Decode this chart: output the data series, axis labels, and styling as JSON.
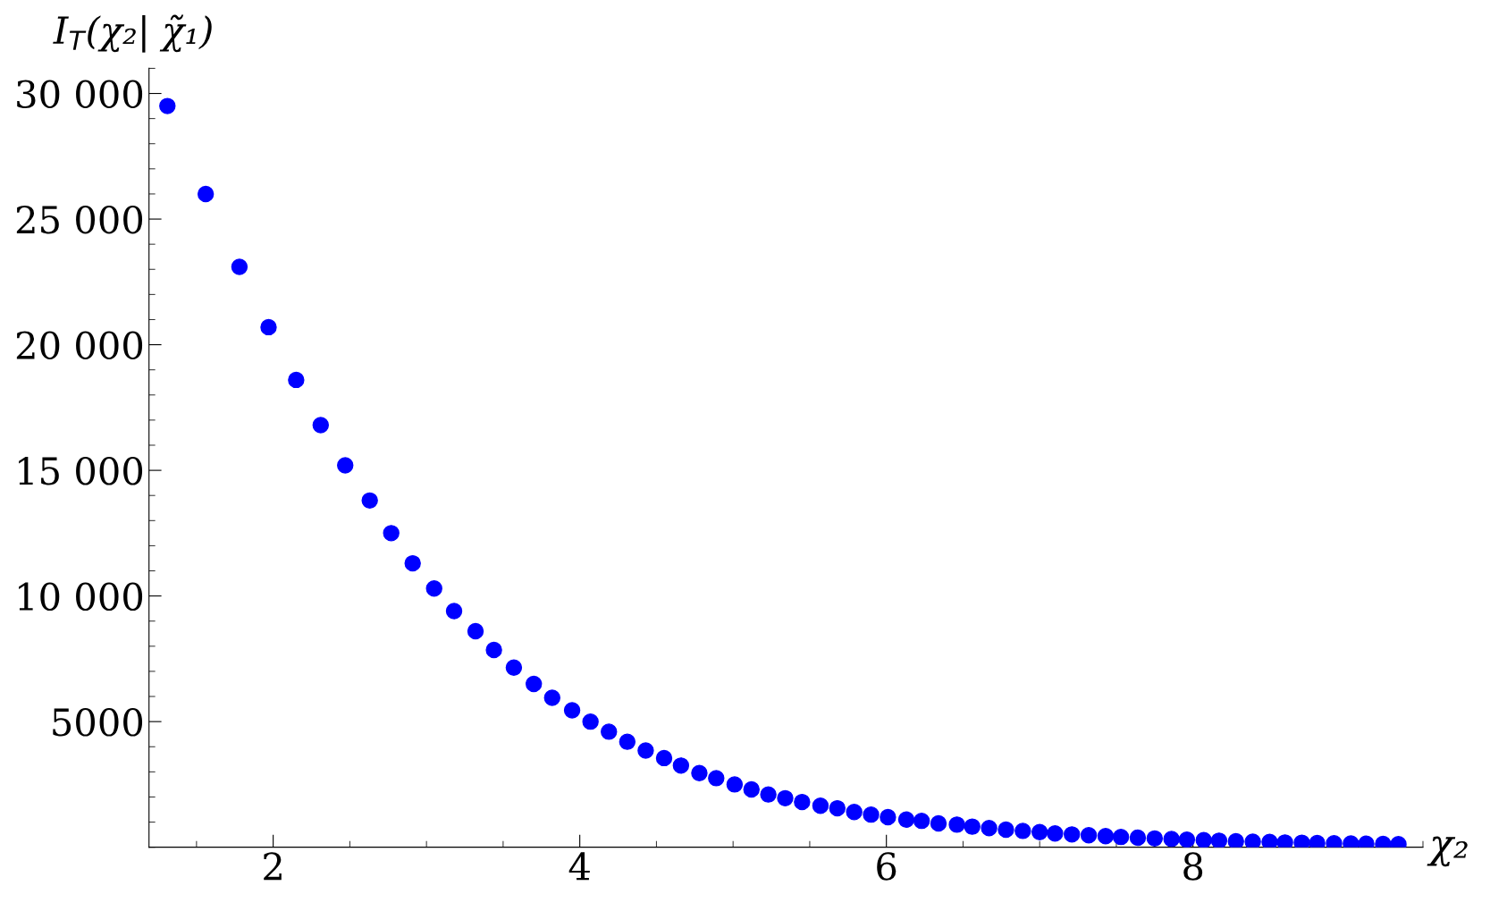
{
  "chart_data": {
    "type": "scatter",
    "xlabel": "χ₂",
    "ylabel": "I$_{T}$(χ₂| χ̃₁)",
    "xlim": [
      1.19,
      9.5
    ],
    "ylim": [
      0,
      31000
    ],
    "xticks": [
      2,
      4,
      6,
      8
    ],
    "yticks": [
      {
        "value": 5000,
        "label": "5000"
      },
      {
        "value": 10000,
        "label": "10 000"
      },
      {
        "value": 15000,
        "label": "15 000"
      },
      {
        "value": 20000,
        "label": "20 000"
      },
      {
        "value": 25000,
        "label": "25 000"
      },
      {
        "value": 30000,
        "label": "30 000"
      }
    ],
    "grid": false,
    "marker": "circle",
    "series": [
      {
        "color": "#0000ff",
        "x": [
          1.31,
          1.56,
          1.78,
          1.97,
          2.15,
          2.31,
          2.47,
          2.63,
          2.77,
          2.91,
          3.05,
          3.18,
          3.32,
          3.44,
          3.57,
          3.7,
          3.82,
          3.95,
          4.07,
          4.19,
          4.31,
          4.43,
          4.55,
          4.66,
          4.78,
          4.89,
          5.01,
          5.12,
          5.23,
          5.34,
          5.45,
          5.57,
          5.68,
          5.79,
          5.9,
          6.01,
          6.13,
          6.23,
          6.34,
          6.46,
          6.56,
          6.67,
          6.78,
          6.89,
          7.0,
          7.1,
          7.21,
          7.32,
          7.43,
          7.53,
          7.64,
          7.75,
          7.86,
          7.96,
          8.07,
          8.17,
          8.28,
          8.39,
          8.5,
          8.6,
          8.71,
          8.81,
          8.92,
          9.03,
          9.13,
          9.24,
          9.34
        ],
        "values": [
          29500,
          26000,
          23100,
          20700,
          18600,
          16800,
          15200,
          13800,
          12500,
          11300,
          10300,
          9400,
          8600,
          7850,
          7150,
          6500,
          5950,
          5450,
          5000,
          4600,
          4200,
          3850,
          3550,
          3250,
          2950,
          2750,
          2500,
          2300,
          2100,
          1950,
          1800,
          1650,
          1550,
          1400,
          1300,
          1200,
          1100,
          1050,
          950,
          900,
          820,
          760,
          700,
          650,
          600,
          550,
          510,
          480,
          440,
          410,
          380,
          350,
          330,
          300,
          280,
          260,
          240,
          220,
          210,
          190,
          180,
          170,
          160,
          150,
          140,
          130,
          120
        ]
      }
    ]
  }
}
